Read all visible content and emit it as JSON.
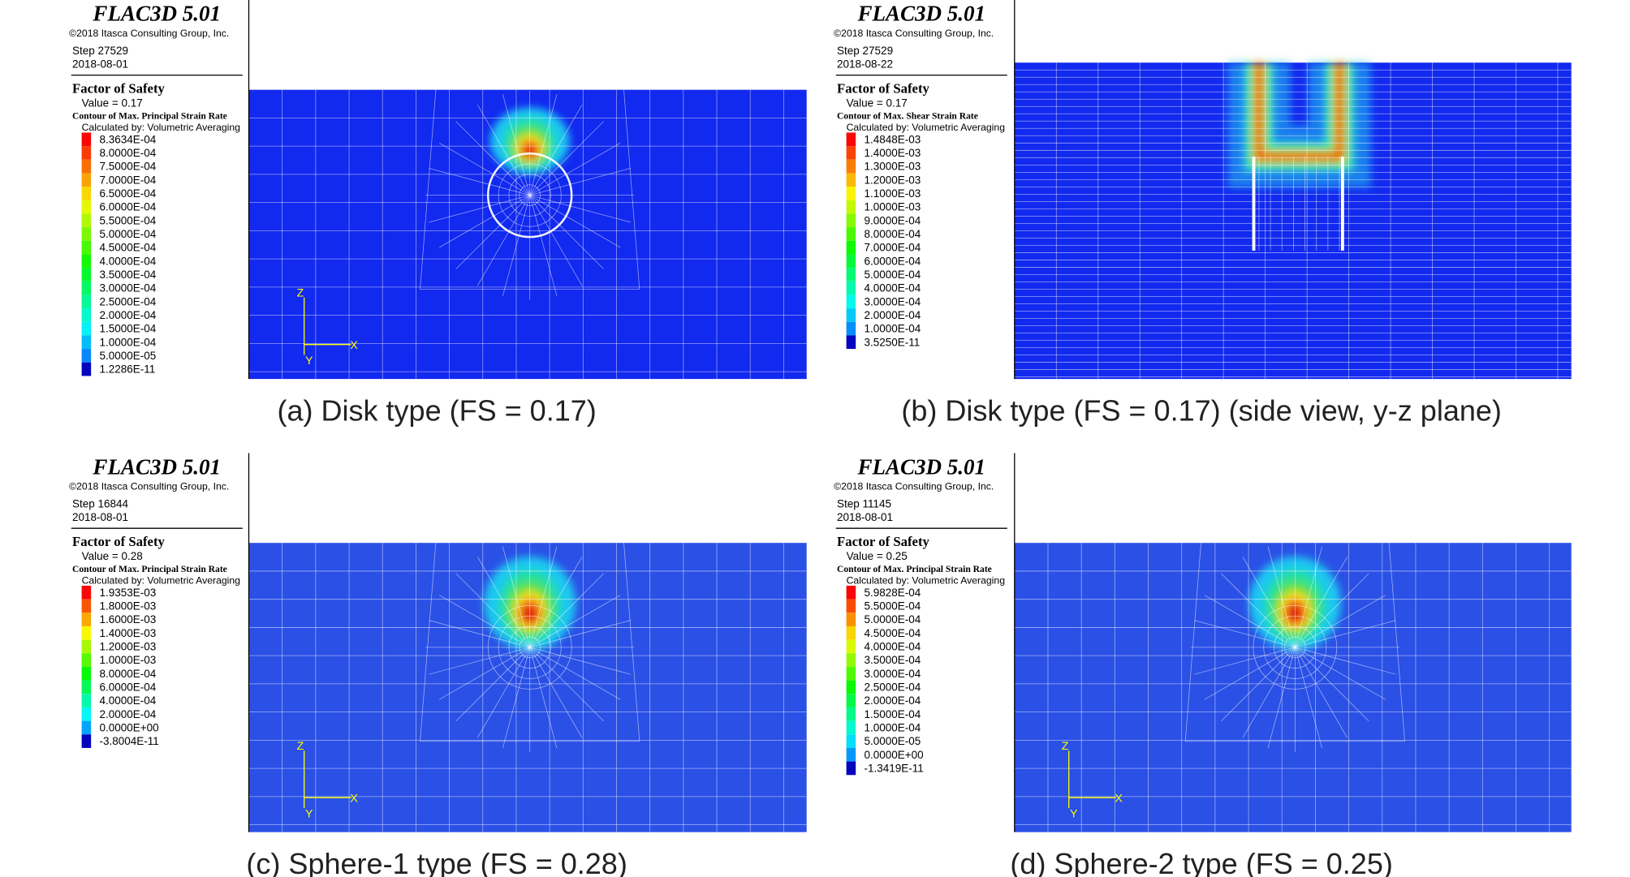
{
  "panels": [
    {
      "program": "FLAC3D 5.01",
      "copyright": "©2018 Itasca Consulting Group, Inc.",
      "step": "Step 27529",
      "date": "2018-08-01",
      "legend_title": "Factor of Safety",
      "value": "Value = 0.17",
      "contour": "Contour of Max. Principal Strain Rate",
      "averaging": "Calculated by: Volumetric Averaging",
      "levels": [
        "8.3634E-04",
        "8.0000E-04",
        "7.5000E-04",
        "7.0000E-04",
        "6.5000E-04",
        "6.0000E-04",
        "5.5000E-04",
        "5.0000E-04",
        "4.5000E-04",
        "4.0000E-04",
        "3.5000E-04",
        "3.0000E-04",
        "2.5000E-04",
        "2.0000E-04",
        "1.5000E-04",
        "1.0000E-04",
        "5.0000E-05",
        "1.2286E-11"
      ],
      "axes": {
        "z": "Z",
        "x": "X",
        "y": "Y"
      },
      "caption": "(a) Disk type (FS = 0.17)"
    },
    {
      "program": "FLAC3D 5.01",
      "copyright": "©2018 Itasca Consulting Group, Inc.",
      "step": "Step 27529",
      "date": "2018-08-22",
      "legend_title": "Factor of Safety",
      "value": "Value = 0.17",
      "contour": "Contour of Max. Shear Strain Rate",
      "averaging": "Calculated by: Volumetric Averaging",
      "levels": [
        "1.4848E-03",
        "1.4000E-03",
        "1.3000E-03",
        "1.2000E-03",
        "1.1000E-03",
        "1.0000E-03",
        "9.0000E-04",
        "8.0000E-04",
        "7.0000E-04",
        "6.0000E-04",
        "5.0000E-04",
        "4.0000E-04",
        "3.0000E-04",
        "2.0000E-04",
        "1.0000E-04",
        "3.5250E-11"
      ],
      "caption": "(b) Disk type (FS = 0.17) (side view, y-z plane)"
    },
    {
      "program": "FLAC3D 5.01",
      "copyright": "©2018 Itasca Consulting Group, Inc.",
      "step": "Step 16844",
      "date": "2018-08-01",
      "legend_title": "Factor of Safety",
      "value": "Value = 0.28",
      "contour": "Contour of Max. Principal Strain Rate",
      "averaging": "Calculated by: Volumetric Averaging",
      "levels": [
        "1.9353E-03",
        "1.8000E-03",
        "1.6000E-03",
        "1.4000E-03",
        "1.2000E-03",
        "1.0000E-03",
        "8.0000E-04",
        "6.0000E-04",
        "4.0000E-04",
        "2.0000E-04",
        "0.0000E+00",
        "-3.8004E-11"
      ],
      "axes": {
        "z": "Z",
        "x": "X",
        "y": "Y"
      },
      "caption": "(c) Sphere-1 type (FS = 0.28)"
    },
    {
      "program": "FLAC3D 5.01",
      "copyright": "©2018 Itasca Consulting Group, Inc.",
      "step": "Step 11145",
      "date": "2018-08-01",
      "legend_title": "Factor of Safety",
      "value": "Value = 0.25",
      "contour": "Contour of Max. Principal Strain Rate",
      "averaging": "Calculated by: Volumetric Averaging",
      "levels": [
        "5.9828E-04",
        "5.5000E-04",
        "5.0000E-04",
        "4.5000E-04",
        "4.0000E-04",
        "3.5000E-04",
        "3.0000E-04",
        "2.5000E-04",
        "2.0000E-04",
        "1.5000E-04",
        "1.0000E-04",
        "5.0000E-05",
        "0.0000E+00",
        "-1.3419E-11"
      ],
      "axes": {
        "z": "Z",
        "x": "X",
        "y": "Y"
      },
      "caption": "(d) Sphere-2 type (FS = 0.25)"
    }
  ]
}
